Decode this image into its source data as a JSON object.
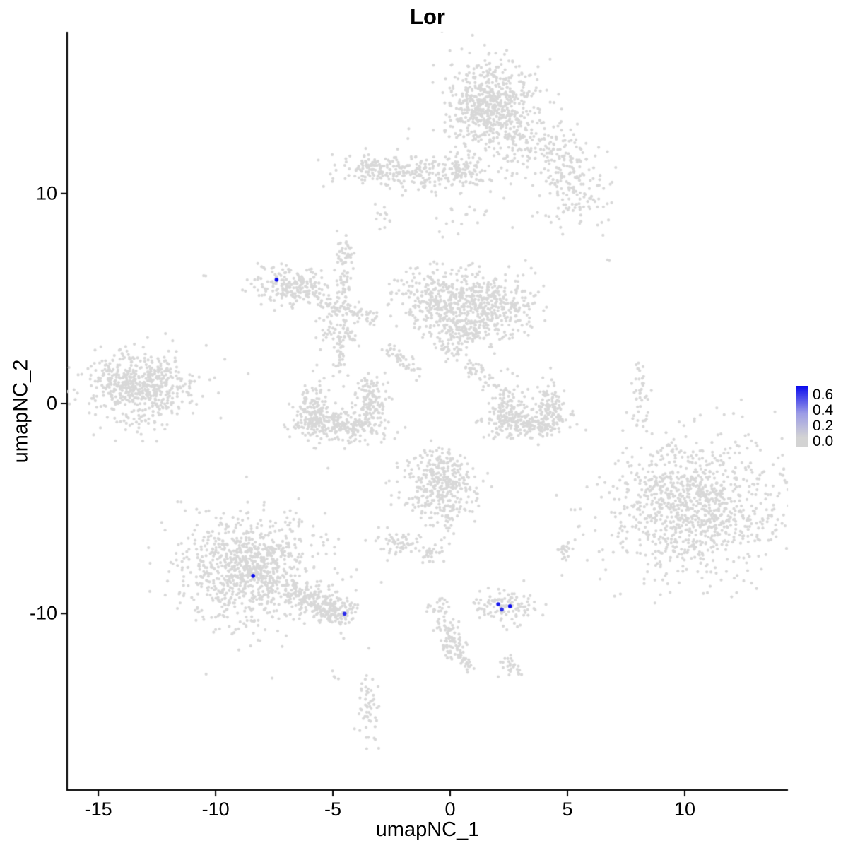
{
  "chart_data": {
    "type": "scatter",
    "title": "Lor",
    "xlabel": "umapNC_1",
    "ylabel": "umapNC_2",
    "xlim": [
      -16.33,
      14.4
    ],
    "ylim": [
      -18.4,
      17.7
    ],
    "x_ticks": [
      "-15",
      "-10",
      "-5",
      "0",
      "5",
      "10"
    ],
    "x_tick_values": [
      -15,
      -10,
      -5,
      0,
      5,
      10
    ],
    "y_ticks": [
      "10",
      "0",
      "-10"
    ],
    "y_tick_values": [
      10,
      0,
      -10
    ],
    "grid": false,
    "legend": {
      "position": "right",
      "ticks": [
        "0.6",
        "0.4",
        "0.2",
        "0.0"
      ],
      "tick_values": [
        0.6,
        0.4,
        0.2,
        0.0
      ],
      "vmin": 0.0,
      "vmax": 0.6,
      "min_color": "#D3D3D3",
      "mid_color": "#9B9BE6",
      "max_color": "#0A0AEE"
    },
    "point_color": "#D8D8D8",
    "highlight_color": "#1414E6",
    "axis_color": "#000000",
    "clusters": [
      {
        "name": "top-core",
        "x": 1.7,
        "y": 14.2,
        "sx": 0.85,
        "sy": 1.0,
        "n": 550
      },
      {
        "name": "top-halo",
        "x": 1.7,
        "y": 14.0,
        "sx": 1.5,
        "sy": 1.6,
        "n": 120
      },
      {
        "name": "top-right-arm",
        "x": 3.9,
        "y": 12.2,
        "sx": 1.1,
        "sy": 0.7,
        "n": 130
      },
      {
        "name": "right-upper-blob",
        "x": 5.3,
        "y": 10.0,
        "sx": 0.8,
        "sy": 0.9,
        "n": 120
      },
      {
        "name": "right-upper-bridge",
        "x": 5.0,
        "y": 11.2,
        "sx": 0.5,
        "sy": 0.5,
        "n": 40
      },
      {
        "name": "upper-band",
        "x": -1.6,
        "y": 11.1,
        "sx": 1.5,
        "sy": 0.4,
        "n": 260
      },
      {
        "name": "upper-band-left",
        "x": -3.4,
        "y": 11.3,
        "sx": 0.4,
        "sy": 0.3,
        "n": 40
      },
      {
        "name": "upper-band-right",
        "x": 0.6,
        "y": 11.0,
        "sx": 0.5,
        "sy": 0.4,
        "n": 50
      },
      {
        "name": "speck-strand",
        "x": -2.9,
        "y": 8.8,
        "sx": 0.15,
        "sy": 0.5,
        "n": 12
      },
      {
        "name": "sparse-upper-mid",
        "x": 0.6,
        "y": 9.3,
        "sx": 1.2,
        "sy": 0.9,
        "n": 25
      },
      {
        "name": "mid-blob-right",
        "x": 1.6,
        "y": 4.6,
        "sx": 1.0,
        "sy": 0.75,
        "n": 380
      },
      {
        "name": "mid-blob-left",
        "x": -0.6,
        "y": 4.9,
        "sx": 0.9,
        "sy": 0.8,
        "n": 280
      },
      {
        "name": "mid-blob-bottom",
        "x": 0.6,
        "y": 3.6,
        "sx": 0.8,
        "sy": 0.5,
        "n": 120
      },
      {
        "name": "upperleft-hook",
        "x": -6.8,
        "y": 5.6,
        "sx": 0.85,
        "sy": 0.5,
        "n": 200
      },
      {
        "name": "vertical-strand",
        "x": -4.5,
        "y": 6.2,
        "sx": 0.18,
        "sy": 0.8,
        "n": 55
      },
      {
        "name": "small-blob-center",
        "x": -4.8,
        "y": 3.5,
        "sx": 0.45,
        "sy": 0.45,
        "n": 70
      },
      {
        "name": "mini-strand",
        "x": -4.7,
        "y": 2.1,
        "sx": 0.15,
        "sy": 0.5,
        "n": 25
      },
      {
        "name": "c-left-arm",
        "x": -5.9,
        "y": -0.2,
        "sx": 0.4,
        "sy": 0.7,
        "n": 130
      },
      {
        "name": "c-bottom",
        "x": -4.6,
        "y": -1.0,
        "sx": 1.0,
        "sy": 0.4,
        "n": 260
      },
      {
        "name": "c-right-arm",
        "x": -3.4,
        "y": 0.1,
        "sx": 0.35,
        "sy": 0.55,
        "n": 110
      },
      {
        "name": "left-cluster",
        "x": -13.3,
        "y": 0.9,
        "sx": 1.05,
        "sy": 0.8,
        "n": 480
      },
      {
        "name": "left-cluster-halo",
        "x": -13.0,
        "y": 0.9,
        "sx": 1.6,
        "sy": 1.0,
        "n": 120
      },
      {
        "name": "right-c-left",
        "x": 2.4,
        "y": -0.3,
        "sx": 0.35,
        "sy": 0.6,
        "n": 110
      },
      {
        "name": "right-c-bottom",
        "x": 3.3,
        "y": -1.0,
        "sx": 0.8,
        "sy": 0.35,
        "n": 200
      },
      {
        "name": "right-c-right",
        "x": 4.3,
        "y": 0.0,
        "sx": 0.3,
        "sy": 0.55,
        "n": 90
      },
      {
        "name": "right-strand",
        "x": 8.1,
        "y": 0.4,
        "sx": 0.18,
        "sy": 0.9,
        "n": 45
      },
      {
        "name": "big-right-core",
        "x": 10.5,
        "y": -4.9,
        "sx": 1.7,
        "sy": 1.5,
        "n": 850
      },
      {
        "name": "big-right-halo",
        "x": 10.5,
        "y": -4.9,
        "sx": 2.4,
        "sy": 2.0,
        "n": 200
      },
      {
        "name": "mid-bottom",
        "x": -0.4,
        "y": -4.1,
        "sx": 0.8,
        "sy": 0.95,
        "n": 320
      },
      {
        "name": "mid-bottom-top",
        "x": -0.5,
        "y": -2.9,
        "sx": 0.5,
        "sy": 0.4,
        "n": 60
      },
      {
        "name": "small-blob-a",
        "x": -2.3,
        "y": -6.6,
        "sx": 0.45,
        "sy": 0.3,
        "n": 55
      },
      {
        "name": "small-blob-b",
        "x": -0.9,
        "y": -7.1,
        "sx": 0.25,
        "sy": 0.3,
        "n": 30
      },
      {
        "name": "small-blob-c",
        "x": 4.9,
        "y": -7.0,
        "sx": 0.18,
        "sy": 0.35,
        "n": 22
      },
      {
        "name": "bottomleft-core",
        "x": -8.5,
        "y": -7.9,
        "sx": 1.25,
        "sy": 1.2,
        "n": 700
      },
      {
        "name": "bottomleft-halo",
        "x": -8.5,
        "y": -8.0,
        "sx": 2.0,
        "sy": 1.7,
        "n": 250
      },
      {
        "name": "tail-end",
        "x": -4.7,
        "y": -9.9,
        "sx": 0.45,
        "sy": 0.35,
        "n": 90
      },
      {
        "name": "blue-dot-cluster",
        "x": 2.3,
        "y": -9.6,
        "sx": 0.55,
        "sy": 0.4,
        "n": 110
      },
      {
        "name": "lower-strand-blob",
        "x": 0.1,
        "y": -11.6,
        "sx": 0.3,
        "sy": 0.35,
        "n": 45
      },
      {
        "name": "lower-small-blob",
        "x": 2.6,
        "y": -12.5,
        "sx": 0.3,
        "sy": 0.3,
        "n": 30
      },
      {
        "name": "bottom-strand",
        "x": -3.5,
        "y": -14.5,
        "sx": 0.25,
        "sy": 0.9,
        "n": 55
      },
      {
        "name": "speck-bottom",
        "x": -4.9,
        "y": -13.0,
        "sx": 0.1,
        "sy": 0.15,
        "n": 4
      },
      {
        "name": "speck-left",
        "x": -10.5,
        "y": 6.1,
        "sx": 0.05,
        "sy": 0.05,
        "n": 2
      },
      {
        "name": "speck-right",
        "x": 6.7,
        "y": 6.9,
        "sx": 0.05,
        "sy": 0.05,
        "n": 2
      }
    ],
    "arms": [
      {
        "name": "hook-arm",
        "x1": -5.9,
        "y1": 5.1,
        "x2": -3.3,
        "y2": 4.0,
        "jitter": 0.28,
        "n": 90
      },
      {
        "name": "mid-diagonal",
        "x1": -0.6,
        "y1": 3.0,
        "x2": 1.9,
        "y2": 0.9,
        "jitter": 0.22,
        "n": 70
      },
      {
        "name": "small-diagonal",
        "x1": -2.7,
        "y1": 2.6,
        "x2": -1.4,
        "y2": 1.5,
        "jitter": 0.18,
        "n": 45
      },
      {
        "name": "bottomleft-tail",
        "x1": -6.6,
        "y1": -9.0,
        "x2": -4.9,
        "y2": -9.9,
        "jitter": 0.35,
        "n": 160
      },
      {
        "name": "lower-strand",
        "x1": -0.6,
        "y1": -9.3,
        "x2": 0.1,
        "y2": -11.4,
        "jitter": 0.22,
        "n": 70
      },
      {
        "name": "strand-top-bit",
        "x1": -4.4,
        "y1": 7.5,
        "x2": -4.5,
        "y2": 6.8,
        "jitter": 0.15,
        "n": 18
      },
      {
        "name": "lower-bit",
        "x1": 0.4,
        "y1": -12.0,
        "x2": 0.8,
        "y2": -12.6,
        "jitter": 0.15,
        "n": 20
      }
    ],
    "expressing_points": [
      {
        "x": -7.4,
        "y": 5.9,
        "value": 0.6
      },
      {
        "x": -8.4,
        "y": -8.2,
        "value": 0.6
      },
      {
        "x": -4.5,
        "y": -10.0,
        "value": 0.5
      },
      {
        "x": 2.05,
        "y": -9.55,
        "value": 0.55
      },
      {
        "x": 2.2,
        "y": -9.8,
        "value": 0.5
      },
      {
        "x": 2.55,
        "y": -9.65,
        "value": 0.6
      }
    ]
  }
}
